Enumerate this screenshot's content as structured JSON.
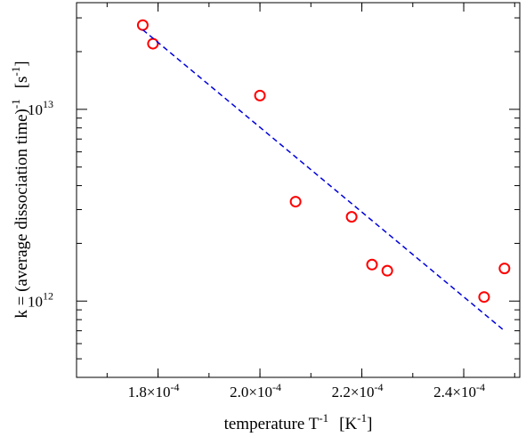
{
  "chart_data": {
    "type": "scatter",
    "title": "",
    "xlabel": {
      "main": "temperature T",
      "exp": "-1",
      "unit_open": "[K",
      "unit_exp": "-1",
      "unit_close": "]"
    },
    "ylabel": {
      "main": "k = (average dissociation time)",
      "exp": "-1",
      "unit_open": "[s",
      "unit_exp": "-1",
      "unit_close": "]"
    },
    "x_scale": "linear",
    "y_scale": "log",
    "xlim": [
      0.000164,
      0.000251
    ],
    "ylim": [
      400000000000,
      36000000000000
    ],
    "x_ticks": [
      {
        "value": 0.00018,
        "mant": "1.8×10",
        "exp": "-4"
      },
      {
        "value": 0.0002,
        "mant": "2.0×10",
        "exp": "-4"
      },
      {
        "value": 0.00022,
        "mant": "2.2×10",
        "exp": "-4"
      },
      {
        "value": 0.00024,
        "mant": "2.4×10",
        "exp": "-4"
      }
    ],
    "x_minor_step": 1e-05,
    "y_ticks": [
      {
        "value": 1000000000000,
        "mant": "10",
        "exp": "12"
      },
      {
        "value": 10000000000000,
        "mant": "10",
        "exp": "13"
      }
    ],
    "grid": false,
    "series": [
      {
        "kind": "points",
        "marker": "open-circle",
        "color": "#ff0000",
        "points": [
          {
            "x": 0.000177,
            "y": 27500000000000
          },
          {
            "x": 0.000179,
            "y": 22000000000000
          },
          {
            "x": 0.0002,
            "y": 11800000000000
          },
          {
            "x": 0.000207,
            "y": 3300000000000
          },
          {
            "x": 0.000218,
            "y": 2750000000000
          },
          {
            "x": 0.000222,
            "y": 1550000000000
          },
          {
            "x": 0.000225,
            "y": 1440000000000
          },
          {
            "x": 0.000244,
            "y": 1050000000000
          },
          {
            "x": 0.000248,
            "y": 1480000000000
          }
        ]
      },
      {
        "kind": "fit-line",
        "style": "dashed",
        "color": "#0000dd",
        "points": [
          {
            "x": 0.000177,
            "y": 26000000000000
          },
          {
            "x": 0.000248,
            "y": 700000000000
          }
        ]
      }
    ]
  }
}
